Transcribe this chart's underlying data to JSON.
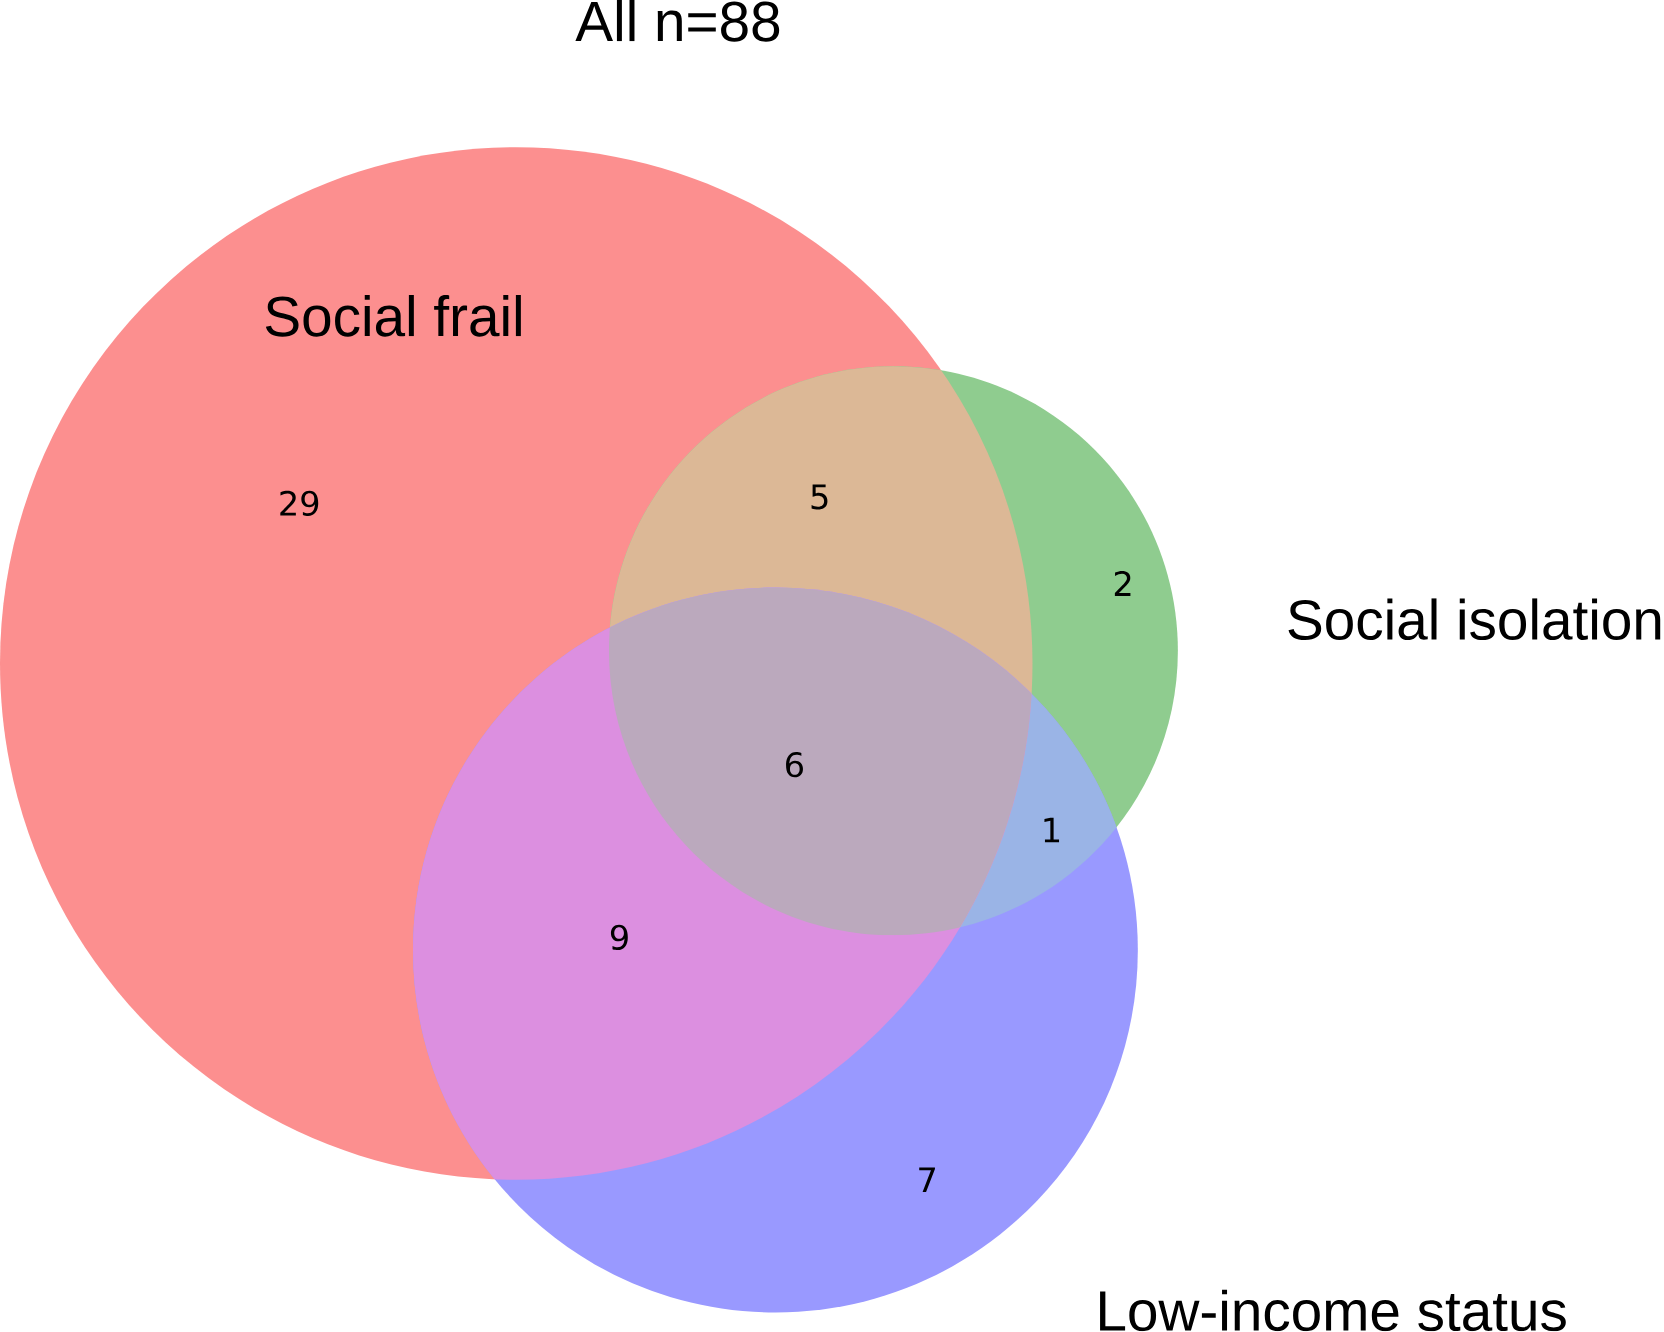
{
  "chart_data": {
    "type": "other",
    "title": "All  n=88",
    "categories": [
      null,
      null,
      null,
      null,
      null,
      null,
      null
    ],
    "values": [
      29,
      5,
      2,
      6,
      1,
      9,
      7
    ],
    "colors": [
      "#fc8f8f",
      "#dcb896",
      "#8fcc8f",
      "#bba9bd",
      "#9ab4e6",
      "#dc8fe0",
      "#9999ff"
    ],
    "data_labels": true,
    "annotations": [
      "Social frail",
      "Social isolation",
      "Low-income status"
    ]
  }
}
